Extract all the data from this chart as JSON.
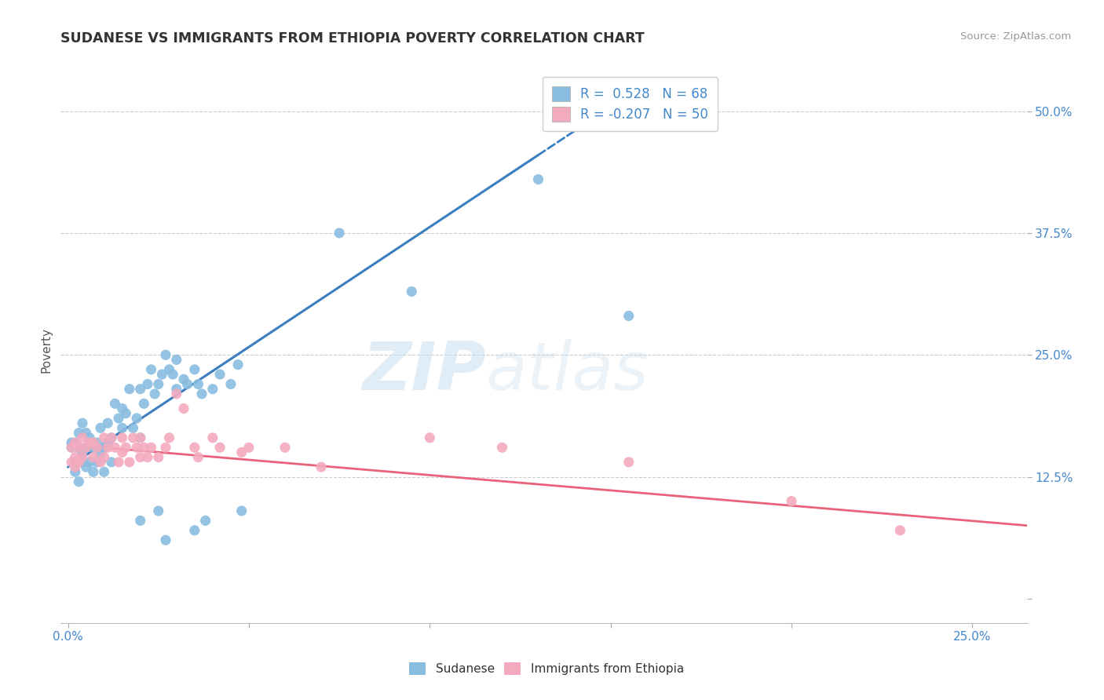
{
  "title": "SUDANESE VS IMMIGRANTS FROM ETHIOPIA POVERTY CORRELATION CHART",
  "source": "Source: ZipAtlas.com",
  "ylabel_label": "Poverty",
  "xlim": [
    -0.002,
    0.265
  ],
  "ylim": [
    -0.025,
    0.535
  ],
  "x_ticks": [
    0.0,
    0.05,
    0.1,
    0.15,
    0.2,
    0.25
  ],
  "x_tick_labels": [
    "0.0%",
    "",
    "",
    "",
    "",
    "25.0%"
  ],
  "y_ticks": [
    0.0,
    0.125,
    0.25,
    0.375,
    0.5
  ],
  "y_tick_labels": [
    "",
    "12.5%",
    "25.0%",
    "37.5%",
    "50.0%"
  ],
  "R_blue": 0.528,
  "N_blue": 68,
  "R_pink": -0.207,
  "N_pink": 50,
  "legend_labels": [
    "Sudanese",
    "Immigrants from Ethiopia"
  ],
  "blue_color": "#88bde0",
  "pink_color": "#f4aabe",
  "blue_line_color": "#3b7ec0",
  "pink_line_color": "#e8627a",
  "watermark_zip": "ZIP",
  "watermark_atlas": "atlas",
  "background_color": "#ffffff",
  "grid_color": "#cccccc",
  "blue_line_x0": 0.0,
  "blue_line_y0": 0.135,
  "blue_line_x1": 0.13,
  "blue_line_y1": 0.455,
  "pink_line_x0": 0.0,
  "pink_line_y0": 0.158,
  "pink_line_x1": 0.265,
  "pink_line_y1": 0.075,
  "blue_scatter": [
    [
      0.001,
      0.16
    ],
    [
      0.001,
      0.155
    ],
    [
      0.002,
      0.14
    ],
    [
      0.002,
      0.13
    ],
    [
      0.002,
      0.16
    ],
    [
      0.003,
      0.155
    ],
    [
      0.003,
      0.17
    ],
    [
      0.003,
      0.12
    ],
    [
      0.004,
      0.14
    ],
    [
      0.004,
      0.18
    ],
    [
      0.004,
      0.15
    ],
    [
      0.005,
      0.155
    ],
    [
      0.005,
      0.135
    ],
    [
      0.005,
      0.17
    ],
    [
      0.006,
      0.14
    ],
    [
      0.006,
      0.165
    ],
    [
      0.007,
      0.155
    ],
    [
      0.007,
      0.13
    ],
    [
      0.008,
      0.16
    ],
    [
      0.008,
      0.14
    ],
    [
      0.009,
      0.175
    ],
    [
      0.009,
      0.15
    ],
    [
      0.01,
      0.155
    ],
    [
      0.01,
      0.13
    ],
    [
      0.011,
      0.18
    ],
    [
      0.011,
      0.16
    ],
    [
      0.012,
      0.14
    ],
    [
      0.012,
      0.165
    ],
    [
      0.013,
      0.2
    ],
    [
      0.014,
      0.185
    ],
    [
      0.015,
      0.195
    ],
    [
      0.015,
      0.175
    ],
    [
      0.016,
      0.19
    ],
    [
      0.017,
      0.215
    ],
    [
      0.018,
      0.175
    ],
    [
      0.019,
      0.185
    ],
    [
      0.02,
      0.165
    ],
    [
      0.02,
      0.215
    ],
    [
      0.021,
      0.2
    ],
    [
      0.022,
      0.22
    ],
    [
      0.023,
      0.235
    ],
    [
      0.024,
      0.21
    ],
    [
      0.025,
      0.22
    ],
    [
      0.026,
      0.23
    ],
    [
      0.027,
      0.25
    ],
    [
      0.028,
      0.235
    ],
    [
      0.029,
      0.23
    ],
    [
      0.03,
      0.245
    ],
    [
      0.03,
      0.215
    ],
    [
      0.032,
      0.225
    ],
    [
      0.033,
      0.22
    ],
    [
      0.035,
      0.235
    ],
    [
      0.036,
      0.22
    ],
    [
      0.037,
      0.21
    ],
    [
      0.04,
      0.215
    ],
    [
      0.042,
      0.23
    ],
    [
      0.045,
      0.22
    ],
    [
      0.047,
      0.24
    ],
    [
      0.048,
      0.09
    ],
    [
      0.075,
      0.375
    ],
    [
      0.095,
      0.315
    ],
    [
      0.13,
      0.43
    ],
    [
      0.155,
      0.29
    ],
    [
      0.025,
      0.09
    ],
    [
      0.027,
      0.06
    ],
    [
      0.035,
      0.07
    ],
    [
      0.02,
      0.08
    ],
    [
      0.038,
      0.08
    ]
  ],
  "pink_scatter": [
    [
      0.001,
      0.155
    ],
    [
      0.001,
      0.14
    ],
    [
      0.002,
      0.16
    ],
    [
      0.002,
      0.145
    ],
    [
      0.002,
      0.135
    ],
    [
      0.003,
      0.155
    ],
    [
      0.003,
      0.14
    ],
    [
      0.004,
      0.165
    ],
    [
      0.004,
      0.145
    ],
    [
      0.005,
      0.155
    ],
    [
      0.006,
      0.16
    ],
    [
      0.007,
      0.145
    ],
    [
      0.007,
      0.16
    ],
    [
      0.008,
      0.155
    ],
    [
      0.009,
      0.14
    ],
    [
      0.01,
      0.165
    ],
    [
      0.01,
      0.145
    ],
    [
      0.011,
      0.155
    ],
    [
      0.012,
      0.165
    ],
    [
      0.013,
      0.155
    ],
    [
      0.014,
      0.14
    ],
    [
      0.015,
      0.165
    ],
    [
      0.015,
      0.15
    ],
    [
      0.016,
      0.155
    ],
    [
      0.017,
      0.14
    ],
    [
      0.018,
      0.165
    ],
    [
      0.019,
      0.155
    ],
    [
      0.02,
      0.145
    ],
    [
      0.02,
      0.165
    ],
    [
      0.021,
      0.155
    ],
    [
      0.022,
      0.145
    ],
    [
      0.023,
      0.155
    ],
    [
      0.025,
      0.145
    ],
    [
      0.027,
      0.155
    ],
    [
      0.028,
      0.165
    ],
    [
      0.03,
      0.21
    ],
    [
      0.032,
      0.195
    ],
    [
      0.035,
      0.155
    ],
    [
      0.036,
      0.145
    ],
    [
      0.04,
      0.165
    ],
    [
      0.042,
      0.155
    ],
    [
      0.048,
      0.15
    ],
    [
      0.05,
      0.155
    ],
    [
      0.06,
      0.155
    ],
    [
      0.07,
      0.135
    ],
    [
      0.1,
      0.165
    ],
    [
      0.12,
      0.155
    ],
    [
      0.155,
      0.14
    ],
    [
      0.2,
      0.1
    ],
    [
      0.23,
      0.07
    ]
  ]
}
